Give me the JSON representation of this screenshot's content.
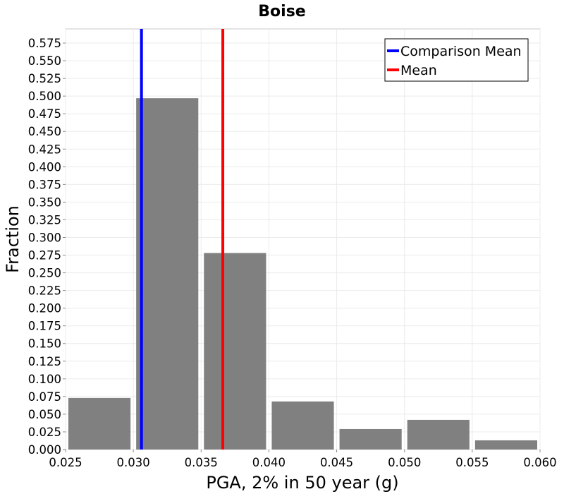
{
  "chart_data": {
    "type": "bar",
    "title": "Boise",
    "xlabel": "PGA, 2% in 50 year (g)",
    "ylabel": "Fraction",
    "xlim": [
      0.025,
      0.06
    ],
    "ylim": [
      0.0,
      0.595
    ],
    "xticks": [
      "0.025",
      "0.030",
      "0.035",
      "0.040",
      "0.045",
      "0.050",
      "0.055",
      "0.060"
    ],
    "yticks": [
      "0.000",
      "0.025",
      "0.050",
      "0.075",
      "0.100",
      "0.125",
      "0.150",
      "0.175",
      "0.200",
      "0.225",
      "0.250",
      "0.275",
      "0.300",
      "0.325",
      "0.350",
      "0.375",
      "0.400",
      "0.425",
      "0.450",
      "0.475",
      "0.500",
      "0.525",
      "0.550",
      "0.575"
    ],
    "bins": [
      {
        "start": 0.025,
        "end": 0.03,
        "value": 0.073
      },
      {
        "start": 0.03,
        "end": 0.035,
        "value": 0.497
      },
      {
        "start": 0.035,
        "end": 0.04,
        "value": 0.278
      },
      {
        "start": 0.04,
        "end": 0.045,
        "value": 0.068
      },
      {
        "start": 0.045,
        "end": 0.05,
        "value": 0.029
      },
      {
        "start": 0.05,
        "end": 0.055,
        "value": 0.042
      },
      {
        "start": 0.055,
        "end": 0.06,
        "value": 0.013
      }
    ],
    "bar_color": "#808080",
    "lines": [
      {
        "name": "Comparison Mean",
        "x": 0.0306,
        "color": "#0000ff"
      },
      {
        "name": "Mean",
        "x": 0.0366,
        "color": "#ff0000"
      }
    ],
    "grid": true,
    "legend_position": "top-right"
  }
}
